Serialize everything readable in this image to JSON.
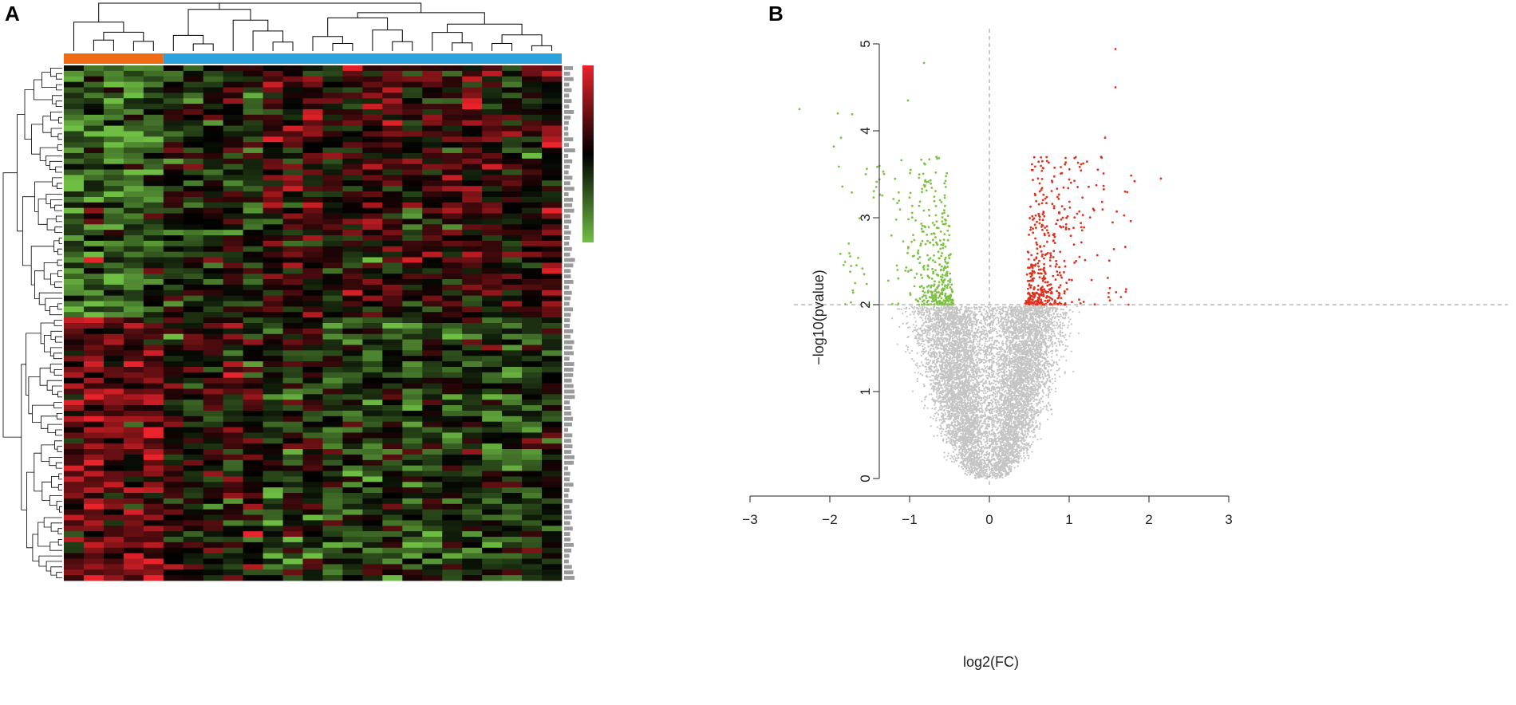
{
  "panels": {
    "a_label": "A",
    "b_label": "B"
  },
  "colors": {
    "group1": "#ef6c12",
    "group2": "#2aa2de",
    "heat_high": "#e8232b",
    "heat_mid": "#000000",
    "heat_low": "#6fbe44",
    "up": "#e0301e",
    "down": "#7dc242",
    "ns": "#c4c4c4",
    "dendro": "#000000"
  },
  "chart_data": [
    {
      "type": "heatmap",
      "panel": "A",
      "columns": 25,
      "column_groups": [
        {
          "group": 1,
          "columns": 5,
          "color": "#ef6c12"
        },
        {
          "group": 2,
          "columns": 20,
          "color": "#2aa2de"
        }
      ],
      "row_clusters": [
        {
          "rows": 46,
          "pattern": "higher in columns 11-25 (red), lower in columns 1-5 (green)"
        },
        {
          "rows": 48,
          "pattern": "higher in columns 1-5 (red), lower in columns 6-25 (green)"
        }
      ],
      "color_scale": [
        "#e8232b",
        "#000000",
        "#6fbe44"
      ],
      "row_dendrogram": true,
      "column_dendrogram": true
    },
    {
      "type": "scatter",
      "panel": "B",
      "xlabel": "log2(FC)",
      "ylabel": "−log10(pvalue)",
      "xlim": [
        -3,
        3
      ],
      "ylim": [
        0,
        5
      ],
      "xticks": [
        "−3",
        "−2",
        "−1",
        "0",
        "1",
        "2",
        "3"
      ],
      "yticks": [
        "0",
        "1",
        "2",
        "3",
        "4",
        "5"
      ],
      "threshold_y": 2,
      "threshold_x": 0,
      "groups": [
        {
          "color": "#e0301e",
          "count": 450,
          "x_range": [
            0.45,
            2.1
          ],
          "y_range": [
            2,
            5
          ]
        },
        {
          "color": "#7dc242",
          "count": 420,
          "x_range": [
            -2.35,
            -0.45
          ],
          "y_range": [
            2,
            4.8
          ]
        },
        {
          "color": "#c4c4c4",
          "count": 9000,
          "x_range": [
            -1.5,
            1.7
          ],
          "y_range": [
            0,
            2
          ]
        }
      ],
      "sample_points": {
        "up": [
          [
            1.58,
            4.94
          ],
          [
            1.58,
            4.5
          ],
          [
            1.45,
            3.92
          ],
          [
            1.0,
            3.44
          ],
          [
            2.15,
            3.45
          ],
          [
            1.82,
            3.42
          ],
          [
            1.4,
            3.7
          ],
          [
            1.7,
            3.3
          ]
        ],
        "down": [
          [
            -0.82,
            4.78
          ],
          [
            -1.02,
            4.35
          ],
          [
            -2.38,
            4.25
          ],
          [
            -1.9,
            4.2
          ],
          [
            -1.72,
            4.19
          ],
          [
            -1.86,
            3.92
          ],
          [
            -1.95,
            3.82
          ],
          [
            -1.55,
            3.5
          ]
        ]
      }
    }
  ]
}
